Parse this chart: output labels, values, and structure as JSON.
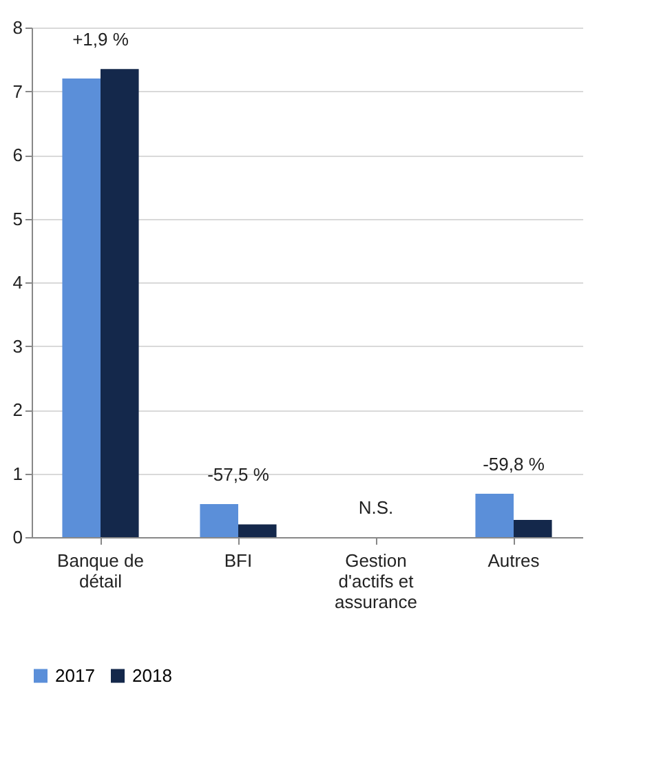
{
  "chart_data": {
    "type": "bar",
    "categories": [
      "Banque de détail",
      "BFI",
      "Gestion d'actifs et assurance",
      "Autres"
    ],
    "series": [
      {
        "name": "2017",
        "color": "#5b8fd9",
        "values": [
          7.2,
          0.52,
          null,
          0.68
        ]
      },
      {
        "name": "2018",
        "color": "#14284b",
        "values": [
          7.35,
          0.2,
          null,
          0.27
        ]
      }
    ],
    "ylim": [
      0,
      8
    ],
    "yticks": [
      0,
      1,
      2,
      3,
      4,
      5,
      6,
      7,
      8
    ],
    "grid": "y",
    "legend": "bottom",
    "annotations": [
      "+1,9 %",
      "-57,5 %",
      "N.S.",
      "-59,8 %"
    ]
  }
}
